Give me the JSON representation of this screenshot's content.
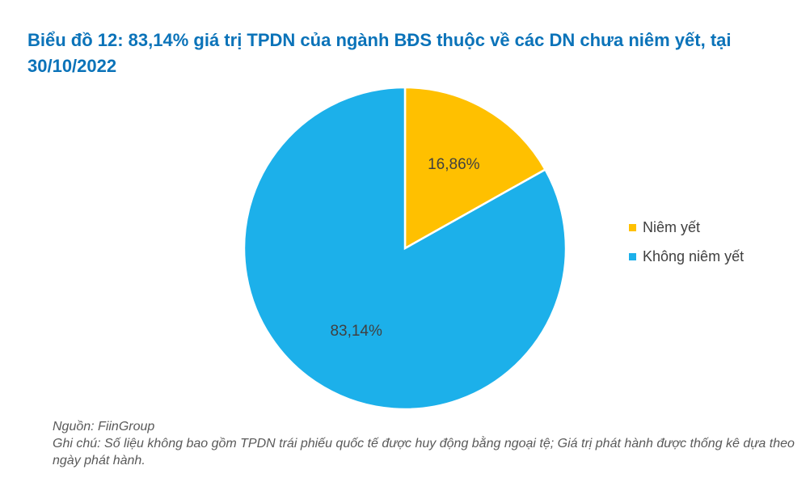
{
  "chart_data": {
    "type": "pie",
    "title": "Biểu đồ 12: 83,14% giá trị TPDN của ngành BĐS thuộc về các DN chưa niêm yết, tại 30/10/2022",
    "slices": [
      {
        "name": "Niêm yết",
        "value": 16.86,
        "label": "16,86%",
        "color": "#ffc000"
      },
      {
        "name": "Không niêm yết",
        "value": 83.14,
        "label": "83,14%",
        "color": "#1cb0ea"
      }
    ],
    "legend_position": "right"
  },
  "notes": {
    "source": "Nguồn: FiinGroup",
    "remark": "Ghi chú: Số liệu không bao gồm TPDN trái phiếu quốc tế được huy động bằng ngoại tệ; Giá trị phát hành được thống kê dựa theo ngày phát hành."
  }
}
